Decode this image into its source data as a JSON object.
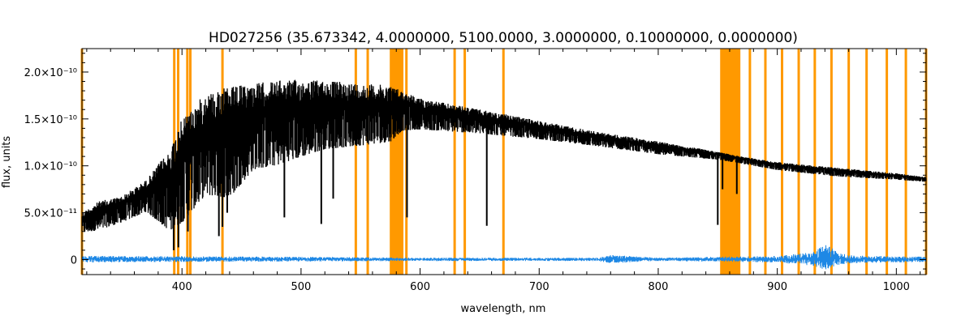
{
  "chart_data": {
    "type": "line",
    "title": "HD027256   (35.673342, 4.0000000, 5100.0000, 3.0000000, 0.10000000, 0.0000000)",
    "xlabel": "wavelength, nm",
    "ylabel": "flux, units",
    "xlim": [
      316,
      1025
    ],
    "ylim": [
      -1.6e-11,
      2.25e-10
    ],
    "x_ticks": [
      {
        "value": 400,
        "label": "400"
      },
      {
        "value": 500,
        "label": "500"
      },
      {
        "value": 600,
        "label": "600"
      },
      {
        "value": 700,
        "label": "700"
      },
      {
        "value": 800,
        "label": "800"
      },
      {
        "value": 900,
        "label": "900"
      },
      {
        "value": 1000,
        "label": "1000"
      }
    ],
    "y_ticks": [
      {
        "value": 0,
        "label": "0"
      },
      {
        "value": 5e-11,
        "label": "5.0×10⁻¹¹"
      },
      {
        "value": 1e-10,
        "label": "1.0×10⁻¹⁰"
      },
      {
        "value": 1.5e-10,
        "label": "1.5×10⁻¹⁰"
      },
      {
        "value": 2e-10,
        "label": "2.0×10⁻¹⁰"
      }
    ],
    "grid": false,
    "colors": {
      "spectrum": "#000000",
      "error": "#1e88e5",
      "masks": "#ff9900"
    },
    "series": [
      {
        "color": "#000000",
        "envelope": {
          "x": [
            316,
            330,
            350,
            370,
            390,
            400,
            420,
            440,
            460,
            480,
            500,
            520,
            540,
            560,
            575,
            585,
            600,
            650,
            700,
            750,
            800,
            850,
            870,
            900,
            950,
            1000,
            1025
          ],
          "y_upper": [
            5e-11,
            6.2e-11,
            6.8e-11,
            8.5e-11,
            1.18e-10,
            1.5e-10,
            1.78e-10,
            1.84e-10,
            1.88e-10,
            1.91e-10,
            1.92e-10,
            1.91e-10,
            1.89e-10,
            1.87e-10,
            1.86e-10,
            1.8e-10,
            1.72e-10,
            1.6e-10,
            1.48e-10,
            1.36e-10,
            1.26e-10,
            1.15e-10,
            1.1e-10,
            1.04e-10,
            9.8e-11,
            9.2e-11,
            8.8e-11
          ],
          "y_lower": [
            2.5e-11,
            2.6e-11,
            3.5e-11,
            4.5e-11,
            1.5e-11,
            2e-11,
            5e-11,
            4.5e-11,
            8e-11,
            8.5e-11,
            9.5e-11,
            1.05e-10,
            1.08e-10,
            1.12e-10,
            1.15e-10,
            1.3e-10,
            1.33e-10,
            1.3e-10,
            1.25e-10,
            1.18e-10,
            1.1e-10,
            1.05e-10,
            1.01e-10,
            9.4e-11,
            8.7e-11,
            8.4e-11,
            8.2e-11
          ]
        },
        "absorption_lines": [
          {
            "x": 382,
            "y": 4e-11
          },
          {
            "x": 393,
            "y": 1e-11
          },
          {
            "x": 397,
            "y": 1.3e-11
          },
          {
            "x": 405,
            "y": 3e-11
          },
          {
            "x": 431,
            "y": 2.5e-11
          },
          {
            "x": 434,
            "y": 3.5e-11
          },
          {
            "x": 438,
            "y": 5e-11
          },
          {
            "x": 486,
            "y": 4.5e-11
          },
          {
            "x": 517,
            "y": 3.8e-11
          },
          {
            "x": 527,
            "y": 6.5e-11
          },
          {
            "x": 589,
            "y": 4.5e-11
          },
          {
            "x": 656,
            "y": 3.6e-11
          },
          {
            "x": 850,
            "y": 3.7e-11
          },
          {
            "x": 854,
            "y": 7.5e-11
          },
          {
            "x": 866,
            "y": 7e-11
          }
        ]
      },
      {
        "color": "#1e88e5",
        "envelope": {
          "x": [
            316,
            400,
            500,
            600,
            700,
            750,
            760,
            800,
            900,
            930,
            940,
            945,
            950,
            960,
            980,
            1000,
            1025
          ],
          "y_upper": [
            4e-12,
            3.5e-12,
            3e-12,
            2e-12,
            2e-12,
            2e-12,
            5e-12,
            2e-12,
            4e-12,
            8e-12,
            1.6e-11,
            1.3e-11,
            8e-12,
            5e-12,
            4e-12,
            3.5e-12,
            3e-12
          ],
          "y_lower": [
            -3e-12,
            -2.5e-12,
            -2e-12,
            -1.5e-12,
            -1.5e-12,
            -1.5e-12,
            -4e-12,
            -1.5e-12,
            -3e-12,
            -7e-12,
            -1.1e-11,
            -9e-12,
            -6e-12,
            -4e-12,
            -3.5e-12,
            -3e-12,
            -2.5e-12
          ]
        }
      }
    ],
    "mask_lines": [
      316,
      393.5,
      396.8,
      404.5,
      407,
      434,
      546,
      556,
      588.5,
      629,
      637.5,
      670,
      877,
      890,
      904,
      918,
      931.5,
      945.5,
      960,
      975,
      992,
      1008,
      1025
    ],
    "mask_bands": [
      [
        574.5,
        586
      ],
      [
        852,
        869
      ]
    ]
  }
}
